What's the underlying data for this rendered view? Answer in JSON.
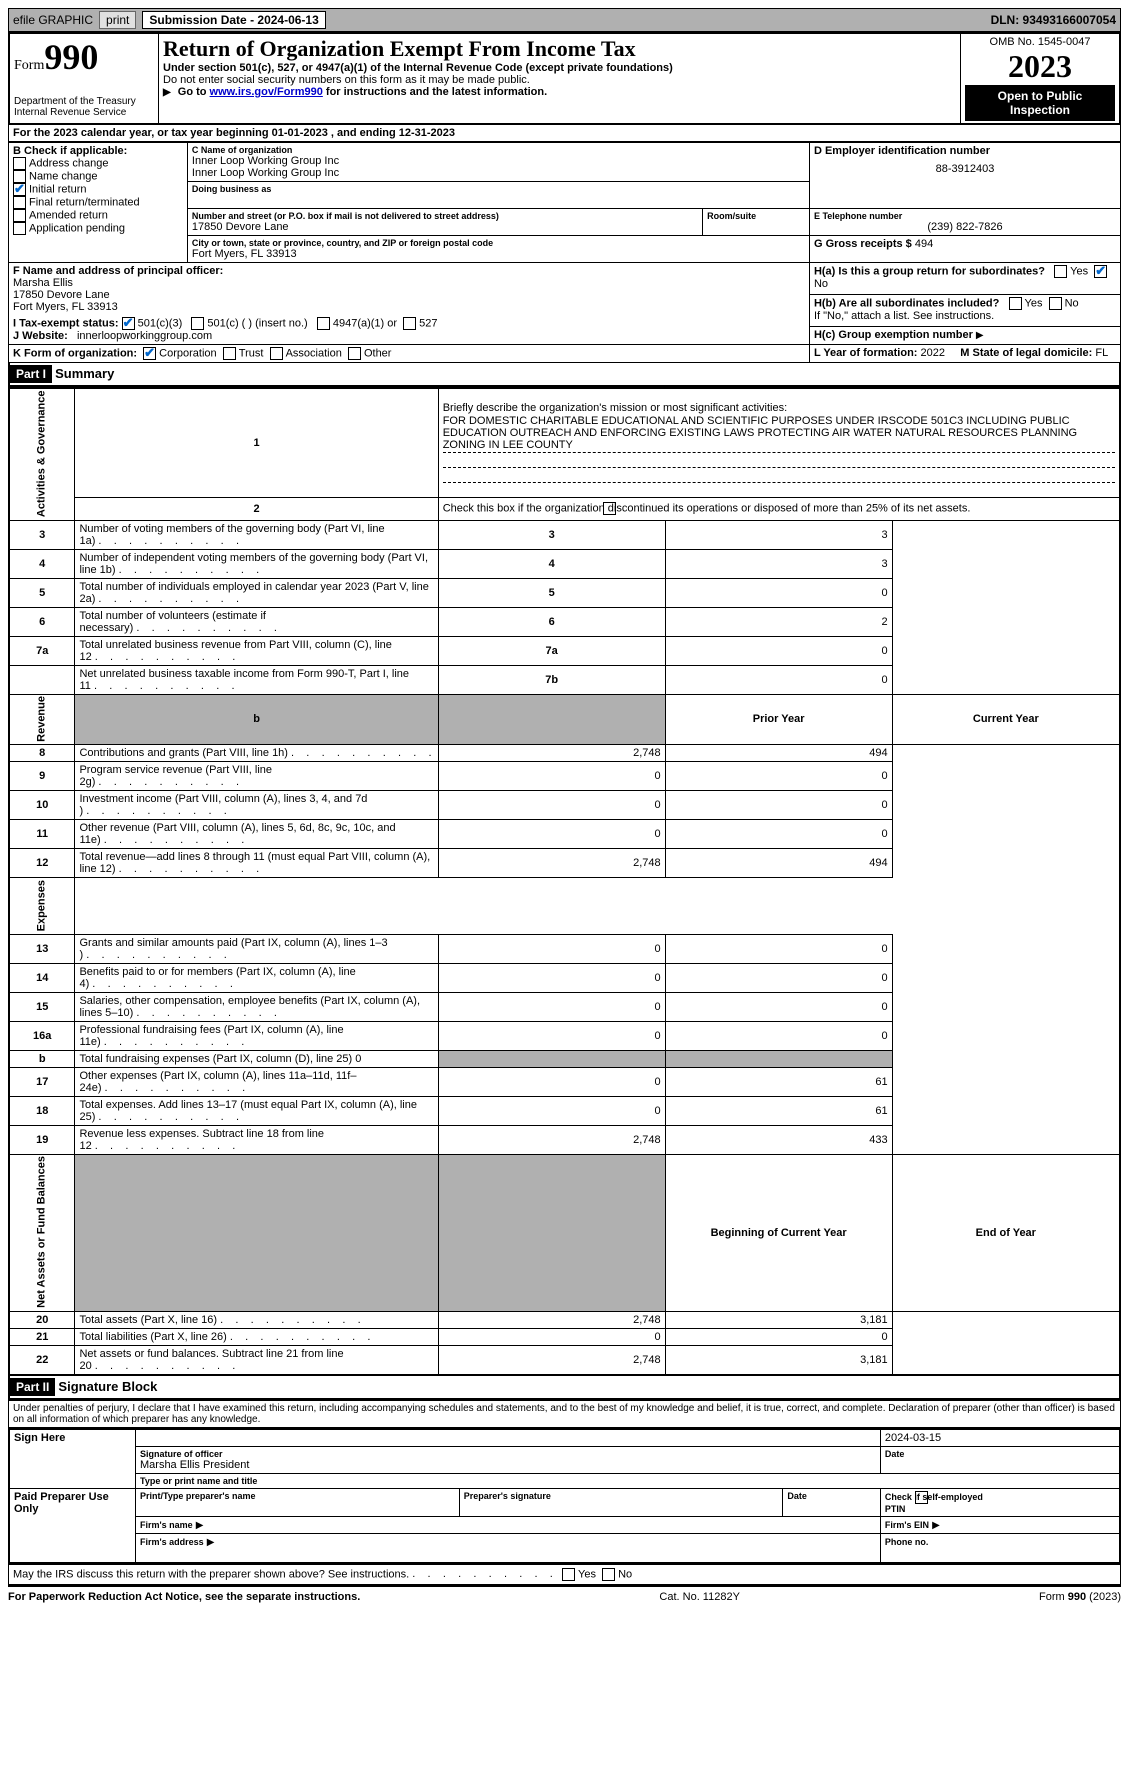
{
  "top_bar": {
    "efile_label": "efile GRAPHIC",
    "print_btn": "print",
    "submission_label": "Submission Date - 2024-06-13",
    "dln": "DLN: 93493166007054"
  },
  "header": {
    "form_label": "Form",
    "form_number": "990",
    "dept1": "Department of the Treasury",
    "dept2": "Internal Revenue Service",
    "title": "Return of Organization Exempt From Income Tax",
    "subtitle": "Under section 501(c), 527, or 4947(a)(1) of the Internal Revenue Code (except private foundations)",
    "warn": "Do not enter social security numbers on this form as it may be made public.",
    "goto_prefix": "Go to ",
    "goto_link": "www.irs.gov/Form990",
    "goto_suffix": " for instructions and the latest information.",
    "omb": "OMB No. 1545-0047",
    "year": "2023",
    "open": "Open to Public Inspection"
  },
  "lineA": "For the 2023 calendar year, or tax year beginning 01-01-2023    , and ending 12-31-2023",
  "boxB": {
    "label": "B Check if applicable:",
    "items": [
      {
        "label": "Address change",
        "checked": false
      },
      {
        "label": "Name change",
        "checked": false
      },
      {
        "label": "Initial return",
        "checked": true
      },
      {
        "label": "Final return/terminated",
        "checked": false
      },
      {
        "label": "Amended return",
        "checked": false
      },
      {
        "label": "Application pending",
        "checked": false
      }
    ]
  },
  "boxC": {
    "name_label": "C Name of organization",
    "name1": "Inner Loop Working Group Inc",
    "name2": "Inner Loop Working Group Inc",
    "dba_label": "Doing business as",
    "street_label": "Number and street (or P.O. box if mail is not delivered to street address)",
    "street": "17850 Devore Lane",
    "room_label": "Room/suite",
    "city_label": "City or town, state or province, country, and ZIP or foreign postal code",
    "city": "Fort Myers, FL  33913"
  },
  "boxD": {
    "label": "D Employer identification number",
    "value": "88-3912403"
  },
  "boxE": {
    "label": "E Telephone number",
    "value": "(239) 822-7826"
  },
  "boxG": {
    "label": "G Gross receipts $",
    "value": "494"
  },
  "boxF": {
    "label": "F Name and address of principal officer:",
    "name": "Marsha Ellis",
    "street": "17850 Devore Lane",
    "city": "Fort Myers, FL  33913"
  },
  "boxH": {
    "a_label": "H(a)  Is this a group return for subordinates?",
    "a_yes": "Yes",
    "a_no": "No",
    "b_label": "H(b)  Are all subordinates included?",
    "b_yes": "Yes",
    "b_no": "No",
    "b_note": "If \"No,\" attach a list. See instructions.",
    "c_label": "H(c)  Group exemption number"
  },
  "lineI": {
    "label": "I    Tax-exempt status:",
    "c3": "501(c)(3)",
    "c_other": "501(c) (  ) (insert no.)",
    "a1": "4947(a)(1) or",
    "s527": "527"
  },
  "lineJ": {
    "label": "J    Website:",
    "value": "innerloopworkinggroup.com"
  },
  "lineK": {
    "label": "K Form of organization:",
    "corp": "Corporation",
    "trust": "Trust",
    "assoc": "Association",
    "other": "Other"
  },
  "lineL": {
    "label": "L Year of formation:",
    "value": "2022"
  },
  "lineM": {
    "label": "M State of legal domicile:",
    "value": "FL"
  },
  "part1": {
    "header": "Part I",
    "title": "Summary",
    "q1_label": "Briefly describe the organization's mission or most significant activities:",
    "q1_text": "FOR DOMESTIC CHARITABLE EDUCATIONAL AND SCIENTIFIC PURPOSES UNDER IRSCODE 501C3 INCLUDING PUBLIC EDUCATION OUTREACH AND ENFORCING EXISTING LAWS PROTECTING AIR WATER NATURAL RESOURCES PLANNING ZONING IN LEE COUNTY",
    "q2": "Check this box       if the organization discontinued its operations or disposed of more than 25% of its net assets.",
    "rows_gov": [
      {
        "n": "3",
        "t": "Number of voting members of the governing body (Part VI, line 1a)",
        "box": "3",
        "v": "3"
      },
      {
        "n": "4",
        "t": "Number of independent voting members of the governing body (Part VI, line 1b)",
        "box": "4",
        "v": "3"
      },
      {
        "n": "5",
        "t": "Total number of individuals employed in calendar year 2023 (Part V, line 2a)",
        "box": "5",
        "v": "0"
      },
      {
        "n": "6",
        "t": "Total number of volunteers (estimate if necessary)",
        "box": "6",
        "v": "2"
      },
      {
        "n": "7a",
        "t": "Total unrelated business revenue from Part VIII, column (C), line 12",
        "box": "7a",
        "v": "0"
      },
      {
        "n": "",
        "t": "Net unrelated business taxable income from Form 990-T, Part I, line 11",
        "box": "7b",
        "v": "0"
      }
    ],
    "prior_hdr": "Prior Year",
    "current_hdr": "Current Year",
    "rows_rev": [
      {
        "n": "8",
        "t": "Contributions and grants (Part VIII, line 1h)",
        "p": "2,748",
        "c": "494"
      },
      {
        "n": "9",
        "t": "Program service revenue (Part VIII, line 2g)",
        "p": "0",
        "c": "0"
      },
      {
        "n": "10",
        "t": "Investment income (Part VIII, column (A), lines 3, 4, and 7d )",
        "p": "0",
        "c": "0"
      },
      {
        "n": "11",
        "t": "Other revenue (Part VIII, column (A), lines 5, 6d, 8c, 9c, 10c, and 11e)",
        "p": "0",
        "c": "0"
      },
      {
        "n": "12",
        "t": "Total revenue—add lines 8 through 11 (must equal Part VIII, column (A), line 12)",
        "p": "2,748",
        "c": "494"
      }
    ],
    "rows_exp": [
      {
        "n": "13",
        "t": "Grants and similar amounts paid (Part IX, column (A), lines 1–3 )",
        "p": "0",
        "c": "0"
      },
      {
        "n": "14",
        "t": "Benefits paid to or for members (Part IX, column (A), line 4)",
        "p": "0",
        "c": "0"
      },
      {
        "n": "15",
        "t": "Salaries, other compensation, employee benefits (Part IX, column (A), lines 5–10)",
        "p": "0",
        "c": "0"
      },
      {
        "n": "16a",
        "t": "Professional fundraising fees (Part IX, column (A), line 11e)",
        "p": "0",
        "c": "0"
      },
      {
        "n": "b",
        "t": "Total fundraising expenses (Part IX, column (D), line 25) 0",
        "p": "",
        "c": "",
        "shaded": true
      },
      {
        "n": "17",
        "t": "Other expenses (Part IX, column (A), lines 11a–11d, 11f–24e)",
        "p": "0",
        "c": "61"
      },
      {
        "n": "18",
        "t": "Total expenses. Add lines 13–17 (must equal Part IX, column (A), line 25)",
        "p": "0",
        "c": "61"
      },
      {
        "n": "19",
        "t": "Revenue less expenses. Subtract line 18 from line 12",
        "p": "2,748",
        "c": "433"
      }
    ],
    "begin_hdr": "Beginning of Current Year",
    "end_hdr": "End of Year",
    "rows_net": [
      {
        "n": "20",
        "t": "Total assets (Part X, line 16)",
        "p": "2,748",
        "c": "3,181"
      },
      {
        "n": "21",
        "t": "Total liabilities (Part X, line 26)",
        "p": "0",
        "c": "0"
      },
      {
        "n": "22",
        "t": "Net assets or fund balances. Subtract line 21 from line 20",
        "p": "2,748",
        "c": "3,181"
      }
    ],
    "side_gov": "Activities & Governance",
    "side_rev": "Revenue",
    "side_exp": "Expenses",
    "side_net": "Net Assets or Fund Balances"
  },
  "part2": {
    "header": "Part II",
    "title": "Signature Block",
    "perjury": "Under penalties of perjury, I declare that I have examined this return, including accompanying schedules and statements, and to the best of my knowledge and belief, it is true, correct, and complete. Declaration of preparer (other than officer) is based on all information of which preparer has any knowledge.",
    "sign_here": "Sign Here",
    "sig_officer": "Signature of officer",
    "sig_name": "Marsha Ellis President",
    "sig_type": "Type or print name and title",
    "sig_date": "2024-03-15",
    "date_label": "Date",
    "paid": "Paid Preparer Use Only",
    "p_name": "Print/Type preparer's name",
    "p_sig": "Preparer's signature",
    "p_date": "Date",
    "p_check": "Check        if self-employed",
    "p_ptin": "PTIN",
    "p_firm": "Firm's name",
    "p_ein": "Firm's EIN",
    "p_addr": "Firm's address",
    "p_phone": "Phone no.",
    "discuss": "May the IRS discuss this return with the preparer shown above? See instructions.",
    "d_yes": "Yes",
    "d_no": "No"
  },
  "footer": {
    "left": "For Paperwork Reduction Act Notice, see the separate instructions.",
    "mid": "Cat. No. 11282Y",
    "right": "Form 990 (2023)"
  }
}
